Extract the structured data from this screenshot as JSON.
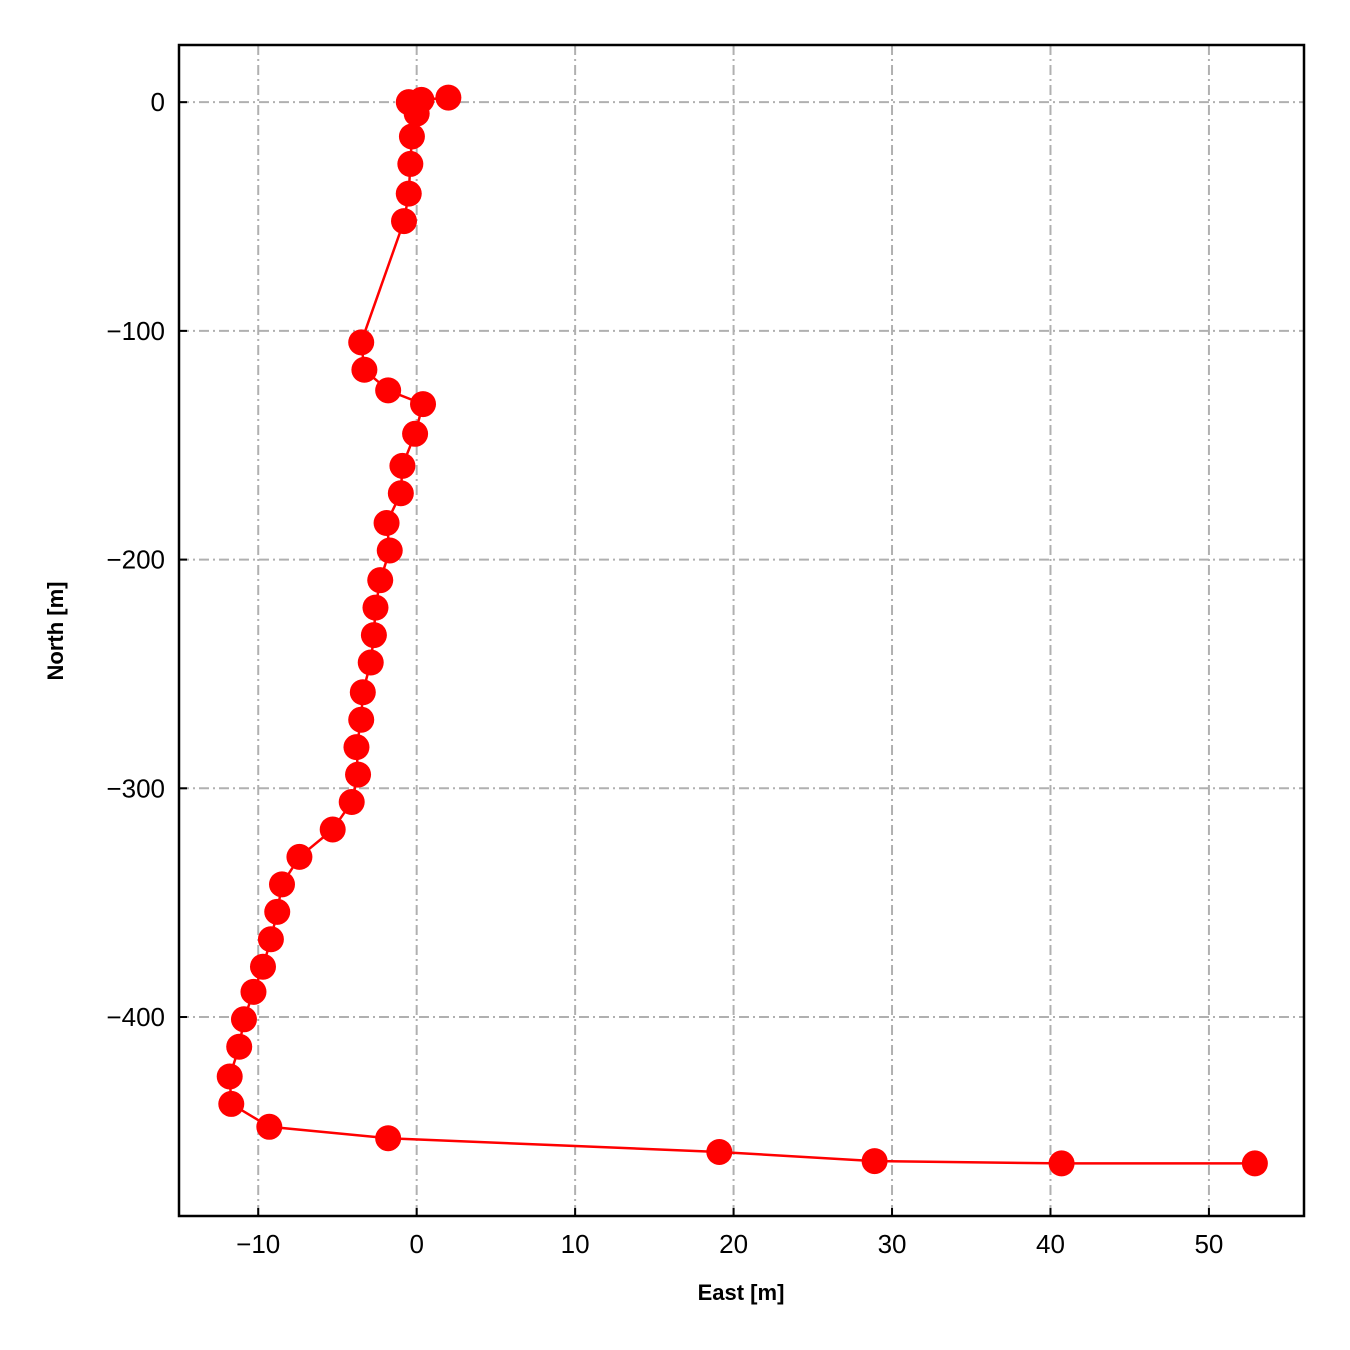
{
  "chart_data": {
    "type": "line",
    "xlabel": "East [m]",
    "ylabel": "North [m]",
    "series": [
      {
        "color": "#ff0000",
        "marker": "circle",
        "x": [
          2.0,
          0.3,
          -0.5,
          0.0,
          -0.3,
          -0.4,
          -0.5,
          -0.8,
          -3.5,
          -3.3,
          -1.8,
          0.4,
          -0.1,
          -0.9,
          -1.0,
          -1.9,
          -1.7,
          -2.3,
          -2.6,
          -2.7,
          -2.9,
          -3.4,
          -3.5,
          -3.8,
          -3.7,
          -4.1,
          -5.3,
          -7.4,
          -8.5,
          -8.8,
          -9.2,
          -9.7,
          -10.3,
          -10.9,
          -11.2,
          -11.8,
          -11.7,
          -9.3,
          -1.8,
          19.1,
          28.9,
          40.7,
          52.9
        ],
        "values": [
          2,
          1,
          0,
          -5,
          -15,
          -27,
          -40,
          -52,
          -105,
          -117,
          -126,
          -132,
          -145,
          -159,
          -171,
          -184,
          -196,
          -209,
          -221,
          -233,
          -245,
          -258,
          -270,
          -282,
          -294,
          -306,
          -318,
          -330,
          -342,
          -354,
          -366,
          -378,
          -389,
          -401,
          -413,
          -426,
          -438,
          -448,
          -453,
          -459,
          -463,
          -464,
          -464
        ]
      }
    ],
    "xlim": [
      -15,
      56
    ],
    "xticks": [
      {
        "value": -10,
        "label": "−10"
      },
      0,
      10,
      20,
      30,
      40,
      50
    ],
    "ylim": [
      -487,
      25
    ],
    "yticks": [
      0,
      {
        "value": -100,
        "label": "−100"
      },
      {
        "value": -200,
        "label": "−200"
      },
      {
        "value": -300,
        "label": "−300"
      },
      {
        "value": -400,
        "label": "−400"
      }
    ],
    "grid": true
  }
}
